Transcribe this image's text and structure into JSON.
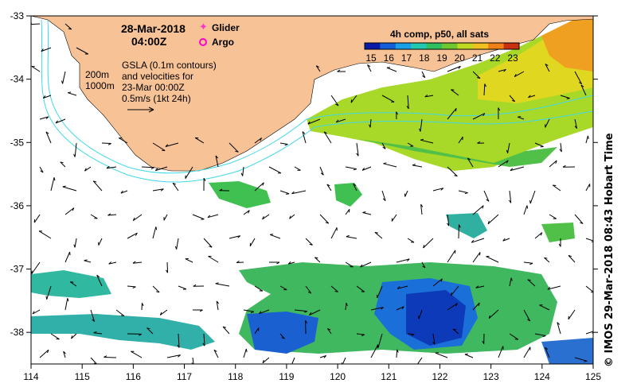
{
  "map": {
    "date": "28-Mar-2018",
    "time": "04:00Z",
    "legend": {
      "glider": "Glider",
      "argo": "Argo",
      "glider_color": "#ff33cc",
      "argo_color": "#ff00cc"
    },
    "contours": {
      "c200": "200m",
      "c1000": "1000m"
    },
    "gsla_text": [
      "GSLA (0.1m contours)",
      "and velocities for",
      "23-Mar 00:00Z",
      "0.5m/s (1kt 24h)"
    ],
    "colorbar": {
      "title": "4h comp, p50, all sats",
      "ticks": [
        "15",
        "16",
        "17",
        "18",
        "19",
        "20",
        "21",
        "22",
        "23"
      ],
      "colors": [
        "#0a1aa8",
        "#1560d8",
        "#1aa0e8",
        "#22c8b0",
        "#30c060",
        "#70c830",
        "#c0d820",
        "#f0c020",
        "#f08018",
        "#c83010"
      ]
    },
    "axes": {
      "x_ticks": [
        "114",
        "115",
        "116",
        "117",
        "118",
        "119",
        "120",
        "121",
        "122",
        "123",
        "124",
        "125"
      ],
      "y_ticks": [
        "-33",
        "-34",
        "-35",
        "-36",
        "-37",
        "-38"
      ],
      "lon_range": [
        114,
        125
      ],
      "lat_range": [
        -38.5,
        -33
      ]
    },
    "credit": "© IMOS 29-Mar-2018 08:43 Hobart Time",
    "land_color": "#f7c396"
  }
}
